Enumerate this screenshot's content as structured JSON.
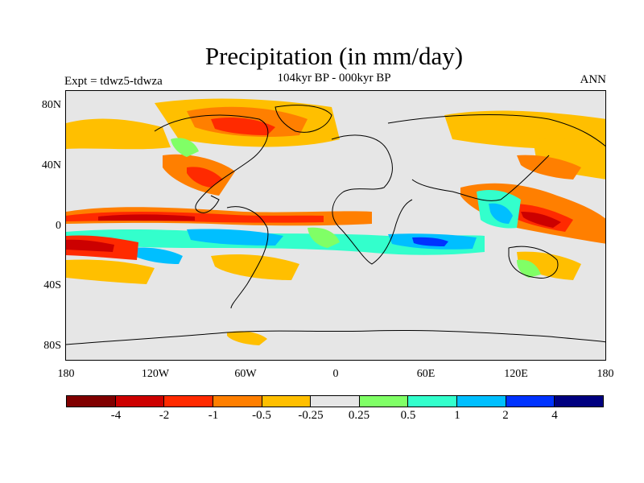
{
  "title": "Precipitation (in mm/day)",
  "subtitle": "104kyr BP - 000kyr BP",
  "left_label": "Expt = tdwz5-tdwza",
  "right_label": "ANN",
  "lat_ticks": [
    "80N",
    "40N",
    "0",
    "40S",
    "80S"
  ],
  "lon_ticks": [
    "180",
    "120W",
    "60W",
    "0",
    "60E",
    "120E",
    "180"
  ],
  "colorbar": {
    "colors": [
      "#800000",
      "#cc0000",
      "#ff2a00",
      "#ff7f00",
      "#ffbf00",
      "#e6e6e6",
      "#80ff66",
      "#33ffcc",
      "#00bfff",
      "#0033ff",
      "#000080"
    ],
    "labels": [
      "-4",
      "-2",
      "-1",
      "-0.5",
      "-0.25",
      "0.25",
      "0.5",
      "1",
      "2",
      "4"
    ]
  }
}
